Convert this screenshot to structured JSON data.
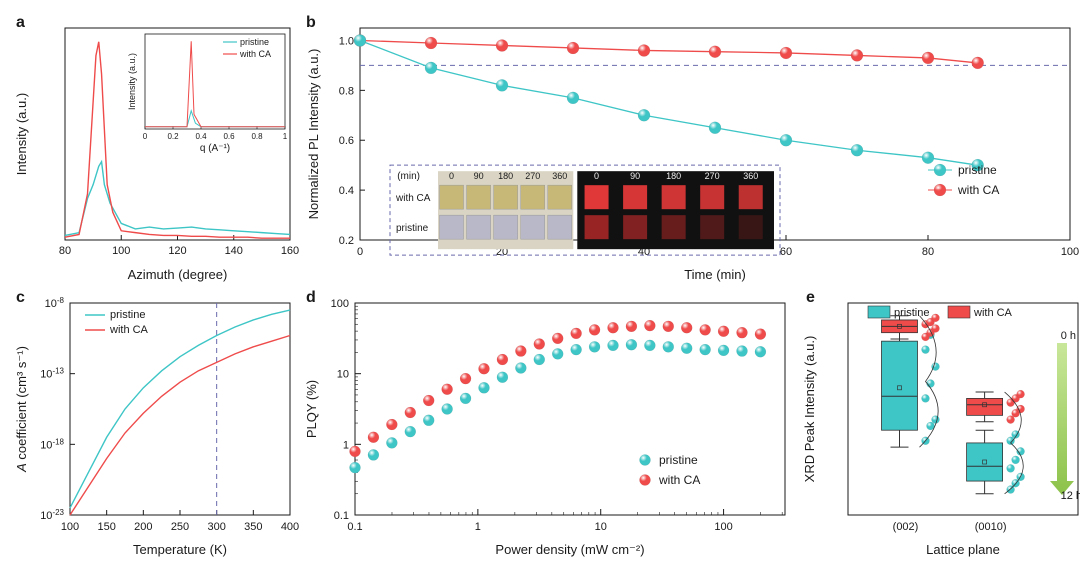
{
  "colors": {
    "pristine": "#3ec5c6",
    "withCA": "#ef4b4b",
    "axis": "#1a1a1a",
    "grid_dash": "#6a6aac",
    "arrow_grad_top": "#c9e79a",
    "arrow_grad_bot": "#8cc24a"
  },
  "panel_a": {
    "label": "a",
    "xlabel": "Azimuth (degree)",
    "ylabel": "Intensity (a.u.)",
    "xlim": [
      80,
      160
    ],
    "xticks": [
      80,
      100,
      120,
      140,
      160
    ],
    "pristine": [
      [
        80,
        5
      ],
      [
        85,
        8
      ],
      [
        88,
        45
      ],
      [
        90,
        60
      ],
      [
        92,
        80
      ],
      [
        93,
        85
      ],
      [
        94,
        60
      ],
      [
        96,
        40
      ],
      [
        100,
        18
      ],
      [
        105,
        12
      ],
      [
        110,
        14
      ],
      [
        115,
        12
      ],
      [
        120,
        13
      ],
      [
        125,
        14
      ],
      [
        130,
        12
      ],
      [
        135,
        11
      ],
      [
        140,
        10
      ],
      [
        145,
        9
      ],
      [
        150,
        8
      ],
      [
        155,
        7
      ],
      [
        160,
        6
      ]
    ],
    "withCA": [
      [
        80,
        3
      ],
      [
        85,
        6
      ],
      [
        88,
        50
      ],
      [
        90,
        150
      ],
      [
        91,
        200
      ],
      [
        92,
        215
      ],
      [
        93,
        180
      ],
      [
        94,
        120
      ],
      [
        95,
        60
      ],
      [
        97,
        30
      ],
      [
        100,
        10
      ],
      [
        105,
        8
      ],
      [
        110,
        6
      ],
      [
        115,
        5
      ],
      [
        120,
        5
      ],
      [
        125,
        4
      ],
      [
        130,
        4
      ],
      [
        135,
        3
      ],
      [
        140,
        3
      ],
      [
        145,
        3
      ],
      [
        150,
        2
      ],
      [
        155,
        2
      ],
      [
        160,
        2
      ]
    ],
    "ymax": 230,
    "inset": {
      "xlabel": "q (A⁻¹)",
      "ylabel": "Intensity (a.u.)",
      "xlim": [
        0,
        1.0
      ],
      "xticks": [
        0,
        0.2,
        0.4,
        0.6,
        0.8,
        1.0
      ],
      "legend": {
        "pristine": "pristine",
        "withCA": "with CA"
      },
      "pristine": [
        [
          0,
          3
        ],
        [
          0.3,
          3
        ],
        [
          0.33,
          25
        ],
        [
          0.36,
          8
        ],
        [
          0.4,
          3
        ],
        [
          1.0,
          3
        ]
      ],
      "withCA": [
        [
          0,
          3
        ],
        [
          0.3,
          3
        ],
        [
          0.33,
          120
        ],
        [
          0.35,
          20
        ],
        [
          0.4,
          3
        ],
        [
          1.0,
          3
        ]
      ],
      "ymax": 130
    }
  },
  "panel_b": {
    "label": "b",
    "xlabel": "Time (min)",
    "ylabel": "Normalized PL Intensity (a.u.)",
    "xlim": [
      0,
      100
    ],
    "xticks": [
      0,
      20,
      40,
      60,
      80,
      100
    ],
    "ylim": [
      0.2,
      1.05
    ],
    "yticks": [
      0.2,
      0.4,
      0.6,
      0.8,
      1.0
    ],
    "hline": 0.9,
    "legend": {
      "pristine": "pristine",
      "withCA": "with CA"
    },
    "pristine_pts": [
      [
        0,
        1.0
      ],
      [
        10,
        0.89
      ],
      [
        20,
        0.82
      ],
      [
        30,
        0.77
      ],
      [
        40,
        0.7
      ],
      [
        50,
        0.65
      ],
      [
        60,
        0.6
      ],
      [
        70,
        0.56
      ],
      [
        80,
        0.53
      ],
      [
        87,
        0.5
      ]
    ],
    "withCA_pts": [
      [
        0,
        1.0
      ],
      [
        10,
        0.99
      ],
      [
        20,
        0.98
      ],
      [
        30,
        0.97
      ],
      [
        40,
        0.96
      ],
      [
        50,
        0.955
      ],
      [
        60,
        0.95
      ],
      [
        70,
        0.94
      ],
      [
        80,
        0.93
      ],
      [
        87,
        0.91
      ]
    ],
    "inset_labels": {
      "unit": "(min)",
      "times": [
        0,
        90,
        180,
        270,
        360
      ],
      "row1": "with CA",
      "row2": "pristine"
    }
  },
  "panel_c": {
    "label": "c",
    "xlabel": "Temperature (K)",
    "ylabel": "A coefficient (cm³ s⁻¹)",
    "xlim": [
      100,
      400
    ],
    "xticks": [
      100,
      150,
      200,
      250,
      300,
      350,
      400
    ],
    "yticks_exp": [
      -23,
      -18,
      -13,
      -8
    ],
    "vline": 300,
    "legend": {
      "pristine": "pristine",
      "withCA": "with CA"
    },
    "pristine_exp": [
      [
        100,
        -22.5
      ],
      [
        125,
        -20.0
      ],
      [
        150,
        -17.5
      ],
      [
        175,
        -15.5
      ],
      [
        200,
        -14.0
      ],
      [
        225,
        -12.8
      ],
      [
        250,
        -11.8
      ],
      [
        275,
        -11.0
      ],
      [
        300,
        -10.3
      ],
      [
        325,
        -9.7
      ],
      [
        350,
        -9.2
      ],
      [
        375,
        -8.8
      ],
      [
        400,
        -8.5
      ]
    ],
    "withCA_exp": [
      [
        100,
        -23.0
      ],
      [
        125,
        -21.0
      ],
      [
        150,
        -19.0
      ],
      [
        175,
        -17.2
      ],
      [
        200,
        -15.8
      ],
      [
        225,
        -14.6
      ],
      [
        250,
        -13.6
      ],
      [
        275,
        -12.8
      ],
      [
        300,
        -12.2
      ],
      [
        325,
        -11.6
      ],
      [
        350,
        -11.1
      ],
      [
        375,
        -10.7
      ],
      [
        400,
        -10.3
      ]
    ]
  },
  "panel_d": {
    "label": "d",
    "xlabel": "Power density (mW cm⁻²)",
    "ylabel": "PLQY (%)",
    "x_log_range": [
      -1,
      2.5
    ],
    "xticks_exp": [
      -1,
      0,
      1,
      2
    ],
    "xtick_labels": [
      "0.1",
      "1",
      "10",
      "100"
    ],
    "y_log_range": [
      -1,
      2
    ],
    "yticks_exp": [
      -1,
      0,
      1,
      2
    ],
    "ytick_labels": [
      "0.1",
      "1",
      "10",
      "100"
    ],
    "legend": {
      "pristine": "pristine",
      "withCA": "with CA"
    },
    "pristine_log": [
      [
        -1.0,
        -0.33
      ],
      [
        -0.85,
        -0.15
      ],
      [
        -0.7,
        0.02
      ],
      [
        -0.55,
        0.18
      ],
      [
        -0.4,
        0.34
      ],
      [
        -0.25,
        0.5
      ],
      [
        -0.1,
        0.65
      ],
      [
        0.05,
        0.8
      ],
      [
        0.2,
        0.95
      ],
      [
        0.35,
        1.08
      ],
      [
        0.5,
        1.2
      ],
      [
        0.65,
        1.28
      ],
      [
        0.8,
        1.34
      ],
      [
        0.95,
        1.38
      ],
      [
        1.1,
        1.4
      ],
      [
        1.25,
        1.41
      ],
      [
        1.4,
        1.4
      ],
      [
        1.55,
        1.38
      ],
      [
        1.7,
        1.36
      ],
      [
        1.85,
        1.34
      ],
      [
        2.0,
        1.33
      ],
      [
        2.15,
        1.32
      ],
      [
        2.3,
        1.31
      ]
    ],
    "withCA_log": [
      [
        -1.0,
        -0.1
      ],
      [
        -0.85,
        0.1
      ],
      [
        -0.7,
        0.28
      ],
      [
        -0.55,
        0.45
      ],
      [
        -0.4,
        0.62
      ],
      [
        -0.25,
        0.78
      ],
      [
        -0.1,
        0.93
      ],
      [
        0.05,
        1.07
      ],
      [
        0.2,
        1.2
      ],
      [
        0.35,
        1.32
      ],
      [
        0.5,
        1.42
      ],
      [
        0.65,
        1.5
      ],
      [
        0.8,
        1.57
      ],
      [
        0.95,
        1.62
      ],
      [
        1.1,
        1.65
      ],
      [
        1.25,
        1.67
      ],
      [
        1.4,
        1.68
      ],
      [
        1.55,
        1.67
      ],
      [
        1.7,
        1.65
      ],
      [
        1.85,
        1.62
      ],
      [
        2.0,
        1.6
      ],
      [
        2.15,
        1.58
      ],
      [
        2.3,
        1.56
      ]
    ]
  },
  "panel_e": {
    "label": "e",
    "xlabel": "Lattice plane",
    "ylabel": "XRD Peak Intensity (a.u.)",
    "xticks": [
      "(002)",
      "(0010)"
    ],
    "legend": {
      "pristine": "pristine",
      "withCA": "with CA"
    },
    "arrow_top": "0 h",
    "arrow_bot": "12 h",
    "boxes": {
      "g1": {
        "pristine": {
          "q1": 0.4,
          "med": 0.56,
          "q3": 0.82,
          "wlo": 0.32,
          "whi": 0.88,
          "mean": 0.6
        },
        "withCA": {
          "q1": 0.86,
          "med": 0.89,
          "q3": 0.92,
          "wlo": 0.83,
          "whi": 0.94,
          "mean": 0.89
        },
        "pristine_pts": [
          0.35,
          0.42,
          0.45,
          0.55,
          0.62,
          0.7,
          0.78,
          0.85
        ],
        "withCA_pts": [
          0.84,
          0.86,
          0.88,
          0.9,
          0.91,
          0.93
        ]
      },
      "g2": {
        "pristine": {
          "q1": 0.16,
          "med": 0.23,
          "q3": 0.34,
          "wlo": 0.1,
          "whi": 0.4,
          "mean": 0.25
        },
        "withCA": {
          "q1": 0.47,
          "med": 0.52,
          "q3": 0.55,
          "wlo": 0.44,
          "whi": 0.58,
          "mean": 0.52
        },
        "pristine_pts": [
          0.12,
          0.15,
          0.18,
          0.22,
          0.26,
          0.3,
          0.35,
          0.38
        ],
        "withCA_pts": [
          0.45,
          0.48,
          0.5,
          0.53,
          0.55,
          0.57
        ]
      }
    }
  }
}
